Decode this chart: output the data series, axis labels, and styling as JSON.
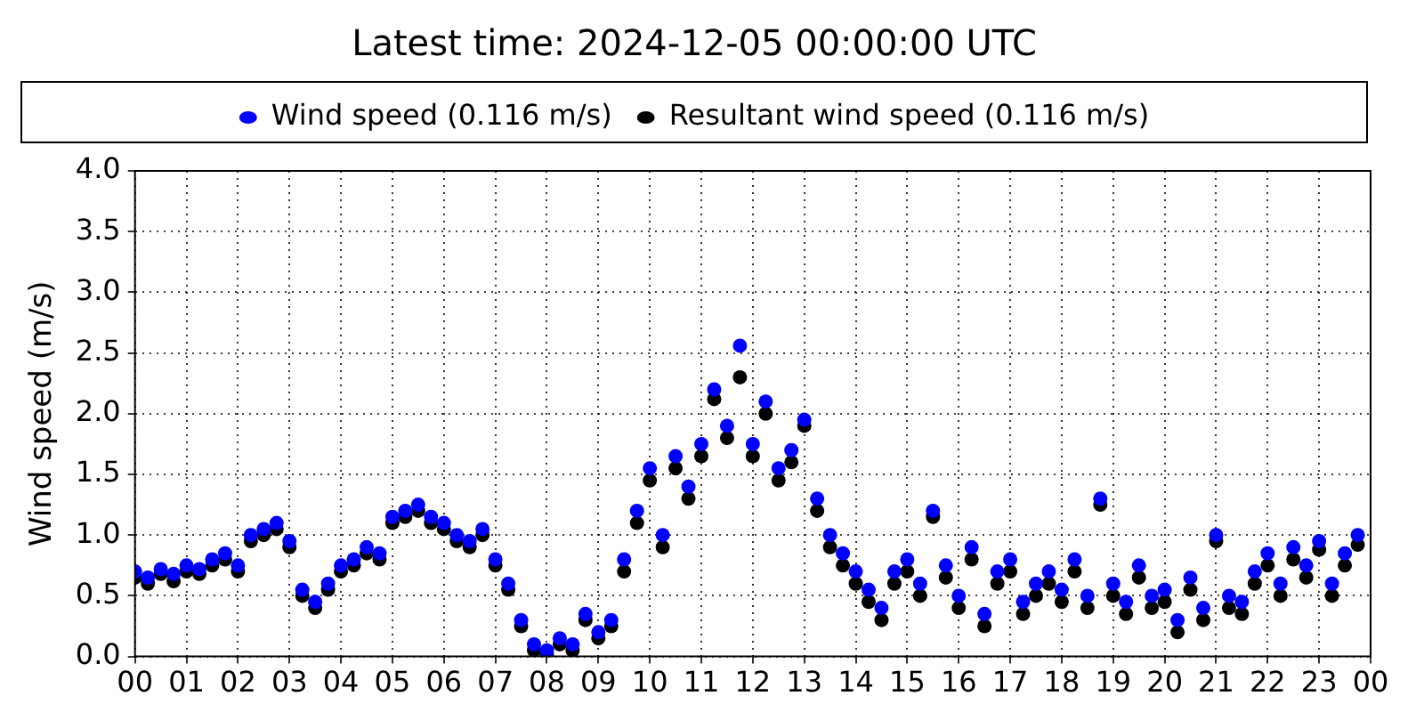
{
  "chart_data": {
    "type": "scatter",
    "title": "Latest time: 2024-12-05 00:00:00 UTC",
    "ylabel": "Wind speed (m/s)",
    "xlim": [
      0,
      24
    ],
    "ylim": [
      0,
      4
    ],
    "xticks": [
      {
        "value": 0,
        "label": "00"
      },
      {
        "value": 1,
        "label": "01"
      },
      {
        "value": 2,
        "label": "02"
      },
      {
        "value": 3,
        "label": "03"
      },
      {
        "value": 4,
        "label": "04"
      },
      {
        "value": 5,
        "label": "05"
      },
      {
        "value": 6,
        "label": "06"
      },
      {
        "value": 7,
        "label": "07"
      },
      {
        "value": 8,
        "label": "08"
      },
      {
        "value": 9,
        "label": "09"
      },
      {
        "value": 10,
        "label": "10"
      },
      {
        "value": 11,
        "label": "11"
      },
      {
        "value": 12,
        "label": "12"
      },
      {
        "value": 13,
        "label": "13"
      },
      {
        "value": 14,
        "label": "14"
      },
      {
        "value": 15,
        "label": "15"
      },
      {
        "value": 16,
        "label": "16"
      },
      {
        "value": 17,
        "label": "17"
      },
      {
        "value": 18,
        "label": "18"
      },
      {
        "value": 19,
        "label": "19"
      },
      {
        "value": 20,
        "label": "20"
      },
      {
        "value": 21,
        "label": "21"
      },
      {
        "value": 22,
        "label": "22"
      },
      {
        "value": 23,
        "label": "23"
      },
      {
        "value": 24,
        "label": "00"
      }
    ],
    "yticks": [
      {
        "value": 0,
        "label": "0.0"
      },
      {
        "value": 0.5,
        "label": "0.5"
      },
      {
        "value": 1,
        "label": "1.0"
      },
      {
        "value": 1.5,
        "label": "1.5"
      },
      {
        "value": 2,
        "label": "2.0"
      },
      {
        "value": 2.5,
        "label": "2.5"
      },
      {
        "value": 3,
        "label": "3.0"
      },
      {
        "value": 3.5,
        "label": "3.5"
      },
      {
        "value": 4,
        "label": "4.0"
      }
    ],
    "grid": true,
    "legend": "top",
    "marker": "circle",
    "x": [
      0,
      0.25,
      0.5,
      0.75,
      1,
      1.25,
      1.5,
      1.75,
      2,
      2.25,
      2.5,
      2.75,
      3,
      3.25,
      3.5,
      3.75,
      4,
      4.25,
      4.5,
      4.75,
      5,
      5.25,
      5.5,
      5.75,
      6,
      6.25,
      6.5,
      6.75,
      7,
      7.25,
      7.5,
      7.75,
      8,
      8.25,
      8.5,
      8.75,
      9,
      9.25,
      9.5,
      9.75,
      10,
      10.25,
      10.5,
      10.75,
      11,
      11.25,
      11.5,
      11.75,
      12,
      12.25,
      12.5,
      12.75,
      13,
      13.25,
      13.5,
      13.75,
      14,
      14.25,
      14.5,
      14.75,
      15,
      15.25,
      15.5,
      15.75,
      16,
      16.25,
      16.5,
      16.75,
      17,
      17.25,
      17.5,
      17.75,
      18,
      18.25,
      18.5,
      18.75,
      19,
      19.25,
      19.5,
      19.75,
      20,
      20.25,
      20.5,
      20.75,
      21,
      21.25,
      21.5,
      21.75,
      22,
      22.25,
      22.5,
      22.75,
      23,
      23.25,
      23.5,
      23.75
    ],
    "series": [
      {
        "name": "Wind speed (0.116 m/s)",
        "color": "#0000ff",
        "values": [
          0.7,
          0.65,
          0.72,
          0.68,
          0.75,
          0.72,
          0.8,
          0.85,
          0.75,
          1.0,
          1.05,
          1.1,
          0.95,
          0.55,
          0.45,
          0.6,
          0.75,
          0.8,
          0.9,
          0.85,
          1.15,
          1.2,
          1.25,
          1.15,
          1.1,
          1.0,
          0.95,
          1.05,
          0.8,
          0.6,
          0.3,
          0.1,
          0.05,
          0.15,
          0.1,
          0.35,
          0.2,
          0.3,
          0.8,
          1.2,
          1.55,
          1.0,
          1.65,
          1.4,
          1.75,
          2.2,
          1.9,
          2.56,
          1.75,
          2.1,
          1.55,
          1.7,
          1.95,
          1.3,
          1.0,
          0.85,
          0.7,
          0.55,
          0.4,
          0.7,
          0.8,
          0.6,
          1.2,
          0.75,
          0.5,
          0.9,
          0.35,
          0.7,
          0.8,
          0.45,
          0.6,
          0.7,
          0.55,
          0.8,
          0.5,
          1.3,
          0.6,
          0.45,
          0.75,
          0.5,
          0.55,
          0.3,
          0.65,
          0.4,
          1.0,
          0.5,
          0.45,
          0.7,
          0.85,
          0.6,
          0.9,
          0.75,
          0.95,
          0.6,
          0.85,
          1.0
        ]
      },
      {
        "name": "Resultant wind speed (0.116 m/s)",
        "color": "#000000",
        "values": [
          0.65,
          0.6,
          0.68,
          0.62,
          0.7,
          0.68,
          0.75,
          0.8,
          0.7,
          0.95,
          1.0,
          1.05,
          0.9,
          0.5,
          0.4,
          0.55,
          0.7,
          0.75,
          0.85,
          0.8,
          1.1,
          1.15,
          1.2,
          1.1,
          1.05,
          0.95,
          0.9,
          1.0,
          0.75,
          0.55,
          0.25,
          0.05,
          0.02,
          0.1,
          0.05,
          0.3,
          0.15,
          0.25,
          0.7,
          1.1,
          1.45,
          0.9,
          1.55,
          1.3,
          1.65,
          2.12,
          1.8,
          2.3,
          1.65,
          2.0,
          1.45,
          1.6,
          1.9,
          1.2,
          0.9,
          0.75,
          0.6,
          0.45,
          0.3,
          0.6,
          0.7,
          0.5,
          1.15,
          0.65,
          0.4,
          0.8,
          0.25,
          0.6,
          0.7,
          0.35,
          0.5,
          0.6,
          0.45,
          0.7,
          0.4,
          1.25,
          0.5,
          0.35,
          0.65,
          0.4,
          0.45,
          0.2,
          0.55,
          0.3,
          0.95,
          0.4,
          0.35,
          0.6,
          0.75,
          0.5,
          0.8,
          0.65,
          0.88,
          0.5,
          0.75,
          0.92
        ]
      }
    ]
  }
}
